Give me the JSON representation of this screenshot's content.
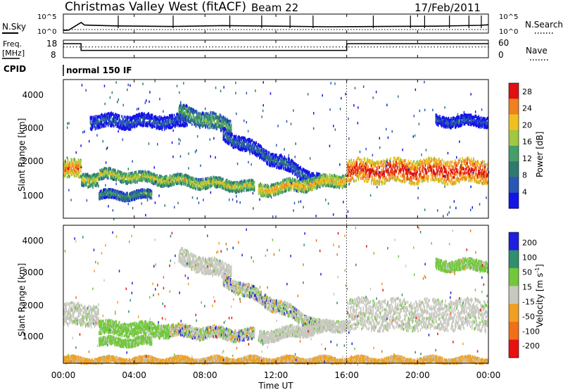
{
  "header": {
    "title": "Christmas Valley West (fitACF)",
    "beam": "Beam 22",
    "date": "17/Feb/2011"
  },
  "colors": {
    "velocity_scale": [
      "#1e1ee0",
      "#2f8f6f",
      "#72c83c",
      "#c8c8c0",
      "#f0a020",
      "#f07018",
      "#e81010"
    ],
    "power_scale": [
      "#1414e8",
      "#2a56b8",
      "#2e7a70",
      "#44a06a",
      "#a0c840",
      "#f0c020",
      "#f08020",
      "#e01010"
    ]
  },
  "chart_data": [
    {
      "type": "line",
      "name": "noise-panel",
      "left_labels": {
        "label": "N.Sky",
        "ticks": [
          "10^5",
          "10^0"
        ]
      },
      "right_labels": {
        "label": "N.Search",
        "ticks": [
          "10^5",
          "10^0"
        ]
      },
      "xlim": [
        "00:00",
        "24:00"
      ],
      "x_hours": [
        0,
        0.3,
        1.0,
        1.2,
        3.0,
        6.0,
        9.0,
        12.0,
        15.0,
        18.0,
        21.0,
        23.5,
        24.0
      ],
      "series": [
        {
          "key": "sky",
          "values_log": [
            0.2,
            0.3,
            3.0,
            2.1,
            1.8,
            1.6,
            1.9,
            1.7,
            1.5,
            1.6,
            1.7,
            2.0,
            2.2
          ]
        }
      ],
      "spikes_x_hours": [
        3.1,
        6.2,
        9.4,
        11.2,
        12.8,
        14.1,
        17.5,
        19.6,
        20.4,
        21.8,
        22.9,
        23.6
      ]
    },
    {
      "type": "line",
      "name": "frequency-panel",
      "left_labels": {
        "label": "Freq.",
        "unit": "[MHz]",
        "ticks": [
          "18",
          "8"
        ]
      },
      "right_labels": {
        "label": "Nave",
        "ticks": [
          "60",
          "0"
        ]
      },
      "xlim": [
        "00:00",
        "24:00"
      ],
      "segments": [
        {
          "x_start": 0.0,
          "x_end": 1.0,
          "freq_mhz": 17.0
        },
        {
          "x_start": 1.0,
          "x_end": 16.0,
          "freq_mhz": 12.2
        },
        {
          "x_start": 16.0,
          "x_end": 24.0,
          "freq_mhz": 17.0
        }
      ],
      "nave_dotted": 40
    },
    {
      "type": "table",
      "name": "cpid-panel",
      "label": "CPID",
      "text": "normal 150 IF"
    },
    {
      "type": "heatmap",
      "name": "power-panel",
      "ylabel": "Slant Range [km]",
      "yticks": [
        "1000",
        "2000",
        "3000",
        "4000"
      ],
      "ylim": [
        180,
        4500
      ],
      "xlim": [
        0,
        24
      ],
      "colorbar": {
        "label": "Power [dB]",
        "ticks": [
          "4",
          "8",
          "12",
          "16",
          "20",
          "24",
          "28"
        ],
        "range": [
          0,
          30
        ]
      },
      "bands": [
        {
          "x": [
            0.0,
            1.0
          ],
          "center": 1700,
          "width": 350,
          "level": 0.65
        },
        {
          "x": [
            1.0,
            2.0
          ],
          "center": 1400,
          "width": 250,
          "level": 0.45
        },
        {
          "x": [
            2.0,
            10.8
          ],
          "center_start": 1550,
          "center_end": 1150,
          "width": 200,
          "level": 0.45
        },
        {
          "x": [
            2.0,
            5.0
          ],
          "center": 900,
          "width": 160,
          "level": 0.25
        },
        {
          "x": [
            1.5,
            7.0
          ],
          "center": 3200,
          "width": 250,
          "level": 0.05
        },
        {
          "x": [
            6.5,
            9.5
          ],
          "center_start": 3500,
          "center_end": 3000,
          "width": 300,
          "level": 0.3
        },
        {
          "x": [
            9.0,
            14.5
          ],
          "center_start": 2800,
          "center_end": 1300,
          "width": 250,
          "level": 0.1
        },
        {
          "x": [
            11.0,
            16.0
          ],
          "center_start": 1050,
          "center_end": 1400,
          "width": 230,
          "level": 0.55
        },
        {
          "x": [
            16.0,
            24.0
          ],
          "center": 1650,
          "width": 450,
          "level": 0.78
        },
        {
          "x": [
            21.0,
            24.0
          ],
          "center": 3200,
          "width": 200,
          "level": 0.05
        }
      ]
    },
    {
      "type": "heatmap",
      "name": "velocity-panel",
      "ylabel": "Slant Range [km]",
      "yticks": [
        "1000",
        "2000",
        "3000",
        "4000"
      ],
      "ylim": [
        180,
        4500
      ],
      "xlim": [
        0,
        24
      ],
      "colorbar": {
        "label": "Velocity [m s^-1]",
        "ticks": [
          "200",
          "100",
          "50",
          "15",
          "-15",
          "-50",
          "-100",
          "-200"
        ],
        "range": [
          -250,
          250
        ]
      },
      "xticks": [
        "00:00",
        "04:00",
        "08:00",
        "12:00",
        "16:00",
        "20:00",
        "00:00"
      ],
      "xlabel": "Time UT",
      "bands": [
        {
          "x": [
            0.0,
            2.0
          ],
          "center": 1700,
          "width": 420,
          "kind": "gray"
        },
        {
          "x": [
            2.0,
            6.0
          ],
          "center_start": 1300,
          "center_end": 1200,
          "width": 260,
          "kind": "green"
        },
        {
          "x": [
            6.0,
            10.8
          ],
          "center_start": 1200,
          "center_end": 1050,
          "width": 220,
          "kind": "mixed"
        },
        {
          "x": [
            2.0,
            5.0
          ],
          "center": 850,
          "width": 150,
          "kind": "green"
        },
        {
          "x": [
            6.5,
            9.5
          ],
          "center_start": 3500,
          "center_end": 3000,
          "width": 320,
          "kind": "gray"
        },
        {
          "x": [
            9.0,
            14.5
          ],
          "center_start": 2800,
          "center_end": 1300,
          "width": 250,
          "kind": "mixed"
        },
        {
          "x": [
            11.0,
            16.0
          ],
          "center_start": 1000,
          "center_end": 1400,
          "width": 220,
          "kind": "gray"
        },
        {
          "x": [
            16.0,
            24.0
          ],
          "center": 1700,
          "width": 600,
          "kind": "gray"
        },
        {
          "x": [
            21.0,
            24.0
          ],
          "center": 3250,
          "width": 200,
          "kind": "green"
        },
        {
          "x": [
            0.0,
            24.0
          ],
          "center": 260,
          "width": 120,
          "kind": "orange"
        }
      ]
    }
  ]
}
